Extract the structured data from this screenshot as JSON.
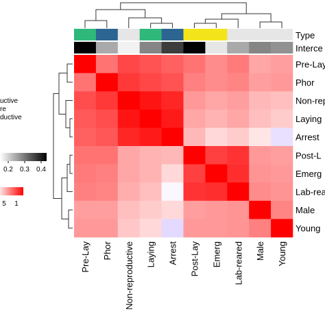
{
  "chart_data": {
    "type": "heatmap",
    "title": "",
    "rows": [
      "Pre-Lay",
      "Phor",
      "Non-reproductive",
      "Laying",
      "Arrest",
      "Post-Lay",
      "Emerg",
      "Lab-reared",
      "Male",
      "Young"
    ],
    "row_labels_visible": [
      "Pre-Lay",
      "Phor",
      "Non-rep",
      "Laying",
      "Arrest",
      "Post-L",
      "Emerg",
      "Lab-rea",
      "Male",
      "Young"
    ],
    "columns": [
      "Pre-Lay",
      "Phor",
      "Non-reproductive",
      "Laying",
      "Arrest",
      "Post-Lay",
      "Emerg",
      "Lab-reared",
      "Male",
      "Young"
    ],
    "values": [
      [
        1.0,
        0.55,
        0.72,
        0.68,
        0.62,
        0.55,
        0.45,
        0.52,
        0.35,
        0.38
      ],
      [
        0.55,
        1.0,
        0.78,
        0.72,
        0.68,
        0.5,
        0.45,
        0.48,
        0.38,
        0.4
      ],
      [
        0.7,
        0.78,
        1.0,
        0.92,
        0.85,
        0.4,
        0.35,
        0.38,
        0.28,
        0.25
      ],
      [
        0.65,
        0.7,
        0.92,
        1.0,
        0.9,
        0.35,
        0.3,
        0.35,
        0.25,
        0.2
      ],
      [
        0.62,
        0.66,
        0.85,
        0.9,
        1.0,
        0.28,
        0.15,
        0.2,
        0.1,
        -0.2
      ],
      [
        0.55,
        0.55,
        0.35,
        0.3,
        0.28,
        1.0,
        0.75,
        0.8,
        0.4,
        0.38
      ],
      [
        0.52,
        0.5,
        0.35,
        0.3,
        0.15,
        0.75,
        1.0,
        0.82,
        0.42,
        0.4
      ],
      [
        0.5,
        0.48,
        0.32,
        0.25,
        -0.05,
        0.8,
        0.82,
        1.0,
        0.45,
        0.42
      ],
      [
        0.38,
        0.38,
        0.25,
        0.2,
        0.15,
        0.38,
        0.4,
        0.42,
        1.0,
        0.48
      ],
      [
        0.4,
        0.4,
        0.22,
        0.15,
        -0.25,
        0.4,
        0.4,
        0.42,
        0.5,
        1.0
      ]
    ],
    "color_scale": {
      "low": "#c9b2ff",
      "mid": "#ffffff",
      "high": "#ff0000",
      "range": [
        -0.5,
        1
      ]
    },
    "annotations": {
      "Type": {
        "label": "Type",
        "colors": [
          "#2eb87a",
          "#2d6592",
          "#e6e6e6",
          "#2eb87a",
          "#2d6592",
          "#f4e41c",
          "#f4e41c",
          "#e6e6e6",
          "#e6e6e6",
          "#e6e6e6"
        ]
      },
      "Intercept": {
        "label": "Interce",
        "values": [
          0.42,
          0.12,
          0.0,
          0.18,
          0.3,
          0.5,
          0.02,
          0.12,
          0.18,
          0.16
        ],
        "range": [
          0,
          0.4
        ]
      }
    },
    "legends": {
      "type_partial": [
        "uctive",
        "re",
        "ductive"
      ],
      "intercept_ticks": [
        "0.2",
        "0.3",
        "0.4"
      ],
      "value_ticks": [
        "5",
        "1"
      ]
    }
  }
}
